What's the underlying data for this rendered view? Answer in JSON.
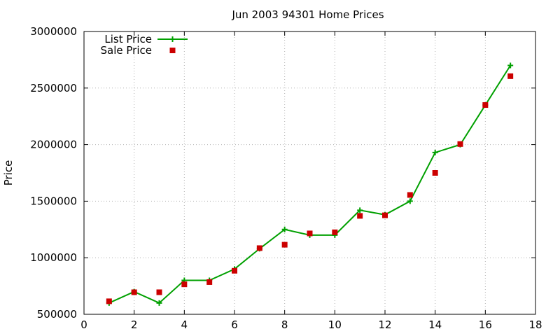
{
  "chart_data": {
    "type": "line",
    "title": "Jun 2003 94301 Home Prices",
    "xlabel": "",
    "ylabel": "Price",
    "xlim": [
      0,
      18
    ],
    "ylim": [
      500000,
      3000000
    ],
    "x_ticks": [
      "0",
      "2",
      "4",
      "6",
      "8",
      "10",
      "12",
      "14",
      "16",
      "18"
    ],
    "y_ticks": [
      "500000",
      "1000000",
      "1500000",
      "2000000",
      "2500000",
      "3000000"
    ],
    "grid": true,
    "legend_position": "top-left",
    "x": [
      1,
      2,
      3,
      4,
      5,
      6,
      7,
      8,
      9,
      10,
      11,
      12,
      13,
      14,
      15,
      16,
      17
    ],
    "series": [
      {
        "name": "List Price",
        "style": "line-plus",
        "color": "#00a000",
        "values": [
          600000,
          700000,
          600000,
          800000,
          800000,
          900000,
          1080000,
          1250000,
          1200000,
          1200000,
          1420000,
          1380000,
          1500000,
          1930000,
          2000000,
          2350000,
          2700000
        ]
      },
      {
        "name": "Sale Price",
        "style": "square-points",
        "color": "#cc0000",
        "values": [
          615000,
          695000,
          695000,
          765000,
          785000,
          885000,
          1085000,
          1115000,
          1215000,
          1225000,
          1370000,
          1375000,
          1555000,
          1750000,
          2005000,
          2350000,
          2605000
        ]
      }
    ]
  }
}
